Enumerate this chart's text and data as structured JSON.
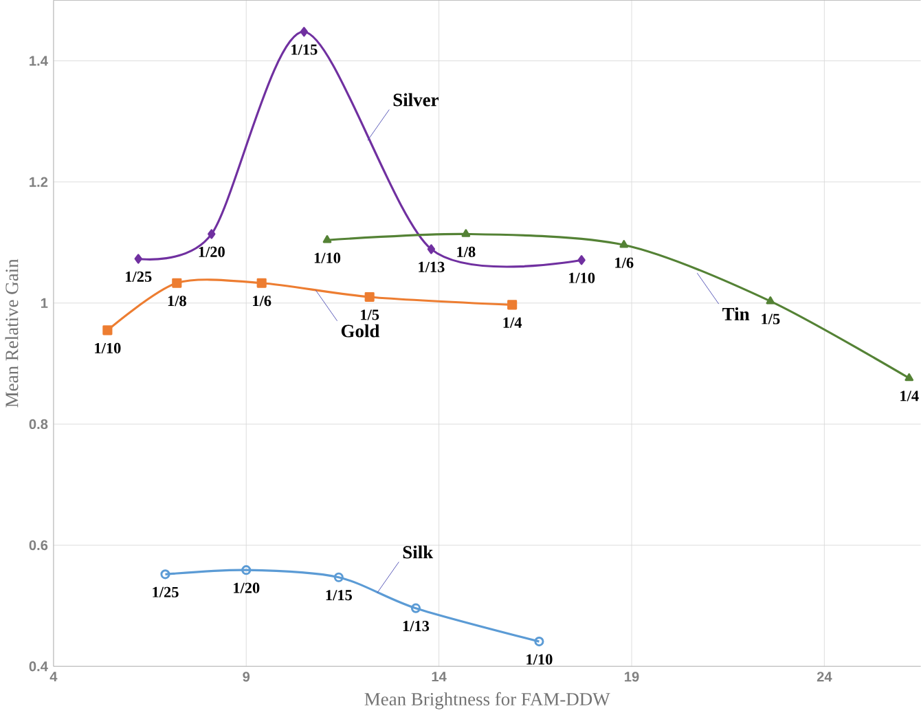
{
  "chart_data": {
    "type": "line",
    "xlabel": "Mean Brightness for FAM-DDW",
    "ylabel": "Mean Relative Gain",
    "xlim": [
      4,
      26.5
    ],
    "xticks": [
      4,
      9,
      14,
      19,
      24
    ],
    "ylim": [
      0.4,
      1.5
    ],
    "yticks": [
      0.4,
      0.6,
      0.8,
      1,
      1.2,
      1.4
    ],
    "grid": true,
    "legend": false,
    "series": [
      {
        "name": "Silver",
        "color": "#7030a0",
        "marker": "diamond",
        "x": [
          6.2,
          8.1,
          10.5,
          13.8,
          17.7
        ],
        "values": [
          1.073,
          1.114,
          1.448,
          1.089,
          1.071
        ]
      },
      {
        "name": "Gold",
        "color": "#ed7d31",
        "marker": "square",
        "x": [
          5.4,
          7.2,
          9.4,
          12.2,
          15.9
        ],
        "values": [
          0.955,
          1.033,
          1.033,
          1.01,
          0.997
        ]
      },
      {
        "name": "Silk",
        "color": "#5b9bd5",
        "marker": "circle",
        "x": [
          6.9,
          9.0,
          11.4,
          13.4,
          16.6
        ],
        "values": [
          0.552,
          0.559,
          0.547,
          0.496,
          0.441
        ]
      },
      {
        "name": "Tin",
        "color": "#548235",
        "marker": "triangle",
        "x": [
          11.1,
          14.7,
          18.8,
          22.6,
          26.2
        ],
        "values": [
          1.104,
          1.114,
          1.096,
          1.003,
          0.876
        ]
      }
    ],
    "annotations": [
      {
        "text": "1/25",
        "x": 6.2,
        "y": 1.073
      },
      {
        "text": "1/20",
        "x": 8.1,
        "y": 1.114
      },
      {
        "text": "1/15",
        "x": 10.5,
        "y": 1.448
      },
      {
        "text": "1/13",
        "x": 13.8,
        "y": 1.089
      },
      {
        "text": "1/10",
        "x": 17.7,
        "y": 1.071
      },
      {
        "text": "1/10",
        "x": 5.4,
        "y": 0.955
      },
      {
        "text": "1/8",
        "x": 7.2,
        "y": 1.033
      },
      {
        "text": "1/6",
        "x": 9.4,
        "y": 1.033
      },
      {
        "text": "1/5",
        "x": 12.2,
        "y": 1.01
      },
      {
        "text": "1/4",
        "x": 15.9,
        "y": 0.997
      },
      {
        "text": "1/25",
        "x": 6.9,
        "y": 0.552
      },
      {
        "text": "1/20",
        "x": 9.0,
        "y": 0.559
      },
      {
        "text": "1/15",
        "x": 11.4,
        "y": 0.547
      },
      {
        "text": "1/13",
        "x": 13.4,
        "y": 0.496
      },
      {
        "text": "1/10",
        "x": 16.6,
        "y": 0.441
      },
      {
        "text": "1/10",
        "x": 11.1,
        "y": 1.104
      },
      {
        "text": "1/8",
        "x": 14.7,
        "y": 1.114
      },
      {
        "text": "1/6",
        "x": 18.8,
        "y": 1.096
      },
      {
        "text": "1/5",
        "x": 22.6,
        "y": 1.003
      },
      {
        "text": "1/4",
        "x": 26.2,
        "y": 0.876
      }
    ]
  }
}
